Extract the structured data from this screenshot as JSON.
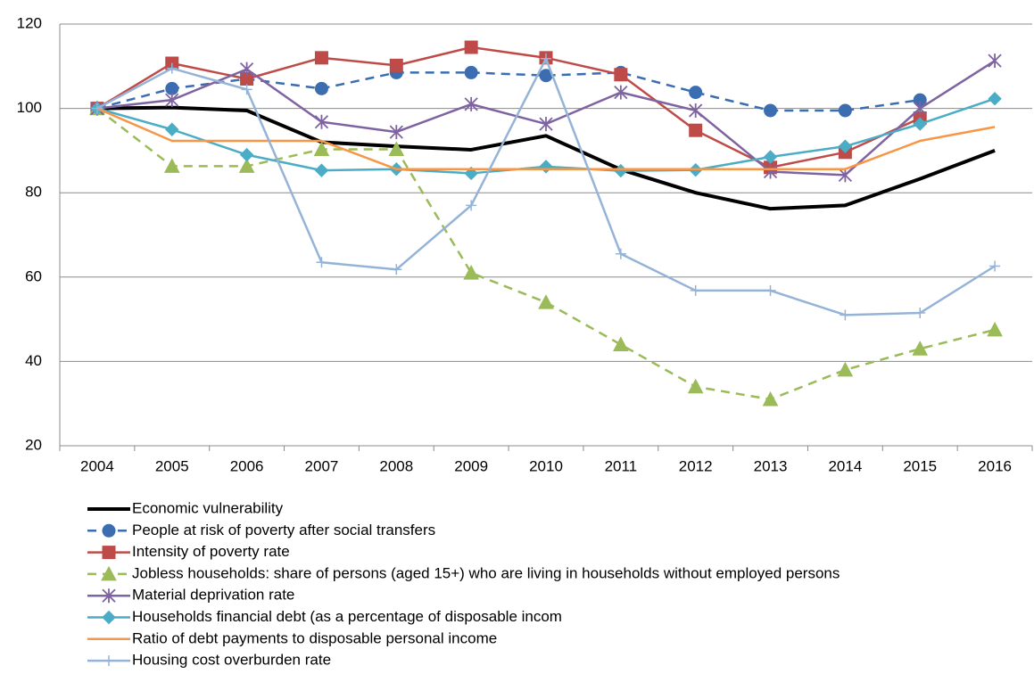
{
  "chart_data": {
    "type": "line",
    "categories": [
      "2004",
      "2005",
      "2006",
      "2007",
      "2008",
      "2009",
      "2010",
      "2011",
      "2012",
      "2013",
      "2014",
      "2015",
      "2016"
    ],
    "ylim": [
      20,
      120
    ],
    "yticks": [
      20,
      40,
      60,
      80,
      100,
      120
    ],
    "grid": true,
    "series": [
      {
        "name": "Economic vulnerability",
        "color": "#000000",
        "width": 4,
        "dash": false,
        "marker": "none",
        "values": [
          100,
          100.2,
          99.5,
          92,
          91,
          90.2,
          93.5,
          85.5,
          80,
          76.2,
          77,
          83.3,
          90
        ]
      },
      {
        "name": "People at risk of poverty after social transfers",
        "color": "#3b6db0",
        "width": 2.5,
        "dash": true,
        "marker": "circle",
        "values": [
          100,
          104.7,
          107,
          104.7,
          108.5,
          108.5,
          107.8,
          108.5,
          103.8,
          99.5,
          99.5,
          102,
          null
        ]
      },
      {
        "name": "Intensity of poverty rate",
        "color": "#be4b48",
        "width": 2.5,
        "dash": false,
        "marker": "square",
        "values": [
          100,
          110.7,
          107,
          112,
          110.2,
          114.5,
          112,
          108,
          94.8,
          86,
          89.6,
          97.7,
          null
        ]
      },
      {
        "name": "Jobless households: share of persons (aged 15+) who are living in households without employed persons",
        "color": "#9bbb59",
        "width": 2.5,
        "dash": true,
        "marker": "triangle",
        "values": [
          100,
          86.3,
          86.3,
          90.3,
          90.3,
          61,
          54,
          44,
          34,
          31,
          38,
          43,
          47.5
        ]
      },
      {
        "name": "Material deprivation rate",
        "color": "#7f63a1",
        "width": 2.5,
        "dash": false,
        "marker": "star",
        "values": [
          100,
          102,
          109.3,
          96.8,
          94.4,
          101,
          96.3,
          103.8,
          99.5,
          85,
          84.2,
          100,
          111.3
        ]
      },
      {
        "name": "Households financial debt (as a percentage of disposable incom",
        "color": "#4bacc6",
        "width": 2.5,
        "dash": false,
        "marker": "diamond",
        "values": [
          100,
          95,
          89,
          85.3,
          85.6,
          84.6,
          86.2,
          85.2,
          85.4,
          88.5,
          91,
          96.3,
          102.3
        ]
      },
      {
        "name": "Ratio of debt payments to disposable personal income",
        "color": "#f79646",
        "width": 2.5,
        "dash": false,
        "marker": "none",
        "values": [
          100,
          92.3,
          92.3,
          92.3,
          85.6,
          85.6,
          85.6,
          85.6,
          85.6,
          85.6,
          85.6,
          92.3,
          95.6
        ]
      },
      {
        "name": "Housing cost overburden rate",
        "color": "#95b3d7",
        "width": 2.5,
        "dash": false,
        "marker": "plus",
        "values": [
          100,
          109.5,
          104.5,
          63.5,
          61.8,
          77,
          111.8,
          65.5,
          56.8,
          56.8,
          51,
          51.5,
          62.6
        ]
      }
    ]
  }
}
